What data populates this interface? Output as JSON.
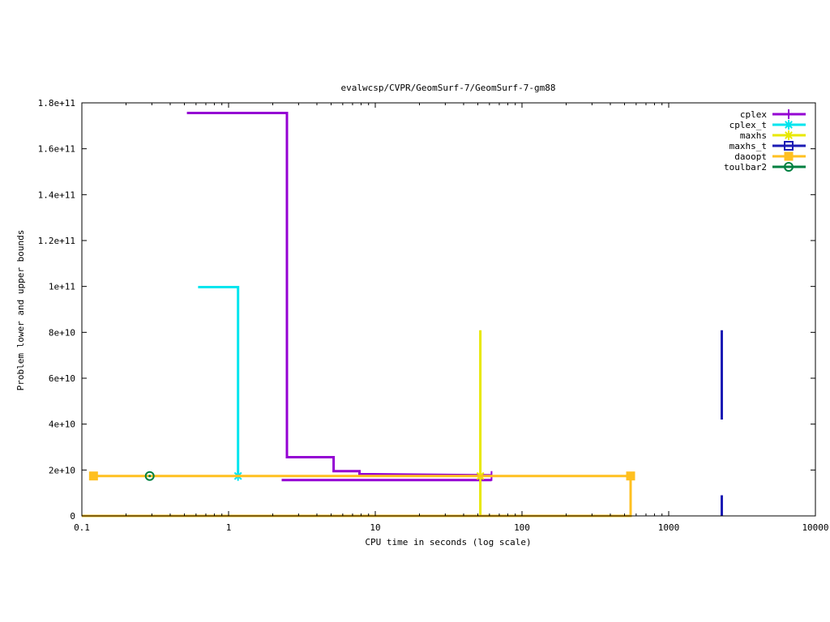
{
  "chart_data": {
    "type": "line",
    "title": "evalwcsp/CVPR/GeomSurf-7/GeomSurf-7-gm88",
    "xlabel": "CPU time in seconds (log scale)",
    "ylabel": "Problem lower and upper bounds",
    "xscale": "log",
    "xlim": [
      0.1,
      10000
    ],
    "ylim": [
      0,
      180000000000
    ],
    "grid": false,
    "legend_position": "top-right",
    "x_ticks": [
      {
        "value": 0.1,
        "label": "0.1"
      },
      {
        "value": 1,
        "label": "1"
      },
      {
        "value": 10,
        "label": "10"
      },
      {
        "value": 100,
        "label": "100"
      },
      {
        "value": 1000,
        "label": "1000"
      },
      {
        "value": 10000,
        "label": "10000"
      }
    ],
    "y_ticks": [
      {
        "value": 0,
        "label": "0"
      },
      {
        "value": 20000000000,
        "label": "2e+10"
      },
      {
        "value": 40000000000,
        "label": "4e+10"
      },
      {
        "value": 60000000000,
        "label": "6e+10"
      },
      {
        "value": 80000000000,
        "label": "8e+10"
      },
      {
        "value": 100000000000,
        "label": "1e+11"
      },
      {
        "value": 120000000000,
        "label": "1.2e+11"
      },
      {
        "value": 140000000000,
        "label": "1.4e+11"
      },
      {
        "value": 160000000000,
        "label": "1.6e+11"
      },
      {
        "value": 180000000000,
        "label": "1.8e+11"
      }
    ],
    "series": [
      {
        "name": "cplex",
        "color": "#9400d3",
        "marker": "plus",
        "lines": [
          {
            "points": [
              [
                0.52,
                175600000000
              ],
              [
                2.5,
                175600000000
              ],
              [
                2.5,
                25600000000
              ],
              [
                5.2,
                25600000000
              ],
              [
                5.2,
                19500000000
              ],
              [
                7.8,
                19500000000
              ],
              [
                7.8,
                18200000000
              ],
              [
                62,
                17700000000
              ]
            ]
          },
          {
            "points": [
              [
                2.3,
                15600000000
              ],
              [
                62,
                15600000000
              ]
            ]
          }
        ],
        "markers": [
          [
            62,
            17400000000
          ]
        ]
      },
      {
        "name": "cplex_t",
        "color": "#00e5ee",
        "marker": "star",
        "lines": [
          {
            "points": [
              [
                0.62,
                99700000000
              ],
              [
                1.16,
                99700000000
              ],
              [
                1.16,
                17400000000
              ]
            ]
          }
        ],
        "markers": [
          [
            1.16,
            17400000000
          ]
        ]
      },
      {
        "name": "maxhs",
        "color": "#e8e800",
        "marker": "star",
        "lines": [
          {
            "points": [
              [
                52,
                80900000000
              ],
              [
                52,
                0
              ]
            ]
          }
        ],
        "markers": [
          [
            52,
            17400000000
          ]
        ]
      },
      {
        "name": "maxhs_t",
        "color": "#1c1cb4",
        "marker": "open-square",
        "lines": [
          {
            "points": [
              [
                2300,
                80900000000
              ],
              [
                2300,
                42000000000
              ]
            ]
          },
          {
            "points": [
              [
                2300,
                9000000000
              ],
              [
                2300,
                0
              ]
            ]
          }
        ],
        "markers": []
      },
      {
        "name": "daoopt",
        "color": "#ffc020",
        "marker": "filled-square",
        "lines": [
          {
            "points": [
              [
                0.12,
                17400000000
              ],
              [
                550,
                17400000000
              ],
              [
                550,
                0
              ],
              [
                0.1,
                0
              ]
            ]
          }
        ],
        "markers": [
          [
            0.12,
            17400000000
          ],
          [
            550,
            17400000000
          ]
        ]
      },
      {
        "name": "toulbar2",
        "color": "#008040",
        "marker": "circle",
        "lines": [],
        "markers": [
          [
            0.29,
            17400000000
          ]
        ]
      }
    ]
  }
}
